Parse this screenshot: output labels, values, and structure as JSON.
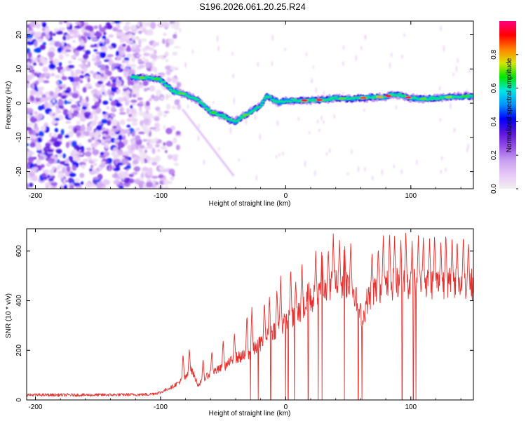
{
  "chart_data": [
    {
      "type": "heatmap",
      "title": "S196.2026.061.20.25.R24",
      "xlabel": "Height of straight line (km)",
      "ylabel": "Frequency (Hz)",
      "xlim": [
        -207,
        150
      ],
      "ylim": [
        -25,
        24
      ],
      "xticks": [
        -200,
        -100,
        0,
        100
      ],
      "xtick_labels": [
        "-200",
        "-100",
        "0",
        "100"
      ],
      "yticks": [
        20,
        10,
        0,
        -10,
        -20
      ],
      "ytick_labels": [
        "20",
        "10",
        "0",
        "-10",
        "-20"
      ],
      "ridge": {
        "x": [
          -123,
          -110,
          -100,
          -90,
          -80,
          -70,
          -60,
          -50,
          -45,
          -40,
          -35,
          -30,
          -25,
          -20,
          -15,
          -10,
          -5,
          0,
          10,
          20,
          30,
          40,
          50,
          60,
          70,
          80,
          85,
          90,
          100,
          110,
          120,
          130,
          140,
          150
        ],
        "y": [
          7.5,
          7.5,
          6.8,
          3.5,
          2.5,
          0.8,
          -2.5,
          -3.8,
          -4.8,
          -5.3,
          -4.0,
          -3.0,
          -1.8,
          -0.8,
          2.2,
          1.0,
          0.2,
          0.8,
          0.8,
          0.8,
          1.0,
          1.5,
          1.2,
          1.5,
          1.8,
          1.8,
          2.5,
          2.5,
          1.5,
          1.3,
          1.5,
          1.8,
          2.0,
          2.0
        ]
      },
      "colorbar": {
        "label": "Normalized spectral amplitude",
        "range": [
          0,
          1
        ],
        "ticks": [
          0,
          0.2,
          0.4,
          0.6,
          0.8
        ],
        "tick_labels": [
          "0.0",
          "0.2",
          "0.4",
          "0.6",
          "0.8"
        ],
        "stops": [
          "#f0f0f0",
          "#e8c8f8",
          "#c8a0f0",
          "#9650e6",
          "#5a14dc",
          "#0000ff",
          "#0090ff",
          "#00e6e6",
          "#00e600",
          "#d8e600",
          "#ff8000",
          "#ff0000",
          "#ff0080"
        ]
      }
    },
    {
      "type": "line",
      "xlabel": "Height of straight line (km)",
      "ylabel": "SNR (10 * v/v)",
      "xlim": [
        -207,
        150
      ],
      "ylim": [
        0,
        690
      ],
      "xticks": [
        -200,
        -100,
        0,
        100
      ],
      "xtick_labels": [
        "-200",
        "-100",
        "0",
        "100"
      ],
      "yticks": [
        0,
        200,
        400,
        600
      ],
      "ytick_labels": [
        "0",
        "200",
        "400",
        "600"
      ],
      "series": [
        {
          "name": "SNR",
          "color": "#e8312e",
          "envelope_x": [
            -207,
            -150,
            -110,
            -100,
            -90,
            -80,
            -75,
            -70,
            -60,
            -50,
            -40,
            -30,
            -20,
            -10,
            0,
            10,
            20,
            30,
            40,
            50,
            55,
            58,
            62,
            65,
            70,
            80,
            90,
            100,
            120,
            150
          ],
          "envelope_y": [
            20,
            20,
            22,
            30,
            55,
            90,
            120,
            60,
            110,
            130,
            170,
            180,
            230,
            280,
            310,
            350,
            400,
            440,
            470,
            470,
            440,
            360,
            330,
            400,
            440,
            460,
            470,
            470,
            470,
            465
          ],
          "spike_peaks": [
            [
              -82,
              190
            ],
            [
              -77,
              210
            ],
            [
              -66,
              170
            ],
            [
              -59,
              200
            ],
            [
              -50,
              245
            ],
            [
              -41,
              270
            ],
            [
              -31,
              350
            ],
            [
              -27,
              380
            ],
            [
              -17,
              400
            ],
            [
              -13,
              420
            ],
            [
              -7,
              450
            ],
            [
              -4,
              500
            ],
            [
              4,
              540
            ],
            [
              8,
              480
            ],
            [
              13,
              560
            ],
            [
              18,
              520
            ],
            [
              24,
              600
            ],
            [
              29,
              640
            ],
            [
              34,
              610
            ],
            [
              38,
              670
            ],
            [
              43,
              650
            ],
            [
              47,
              660
            ],
            [
              52,
              630
            ],
            [
              69,
              600
            ],
            [
              74,
              620
            ],
            [
              78,
              670
            ],
            [
              83,
              680
            ],
            [
              87,
              660
            ],
            [
              92,
              650
            ],
            [
              96,
              680
            ],
            [
              101,
              640
            ],
            [
              106,
              670
            ],
            [
              110,
              660
            ],
            [
              115,
              650
            ],
            [
              119,
              670
            ],
            [
              124,
              640
            ],
            [
              128,
              680
            ],
            [
              133,
              660
            ],
            [
              137,
              650
            ],
            [
              142,
              670
            ],
            [
              146,
              640
            ]
          ],
          "dropouts_x": [
            -28,
            -22,
            -12,
            0,
            2,
            7,
            18,
            26,
            29,
            47,
            58,
            61,
            93,
            102,
            104
          ]
        }
      ]
    }
  ]
}
